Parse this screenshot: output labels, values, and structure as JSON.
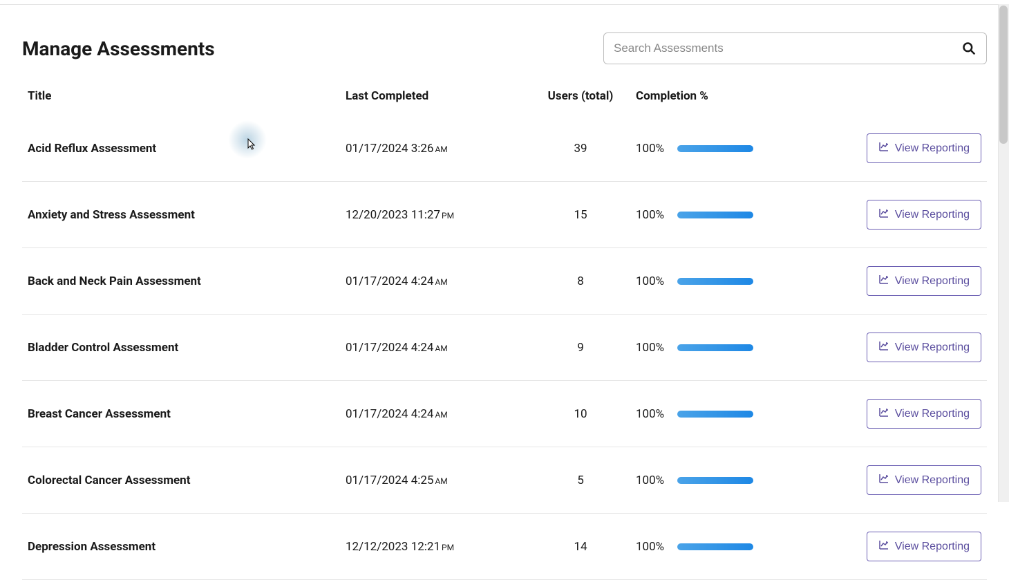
{
  "page": {
    "title": "Manage Assessments"
  },
  "search": {
    "placeholder": "Search Assessments",
    "value": ""
  },
  "columns": {
    "title": "Title",
    "last_completed": "Last Completed",
    "users_total": "Users (total)",
    "completion_pct": "Completion %"
  },
  "action_label": "View Reporting",
  "colors": {
    "progress_start": "#4aa3e8",
    "progress_end": "#1e88e5",
    "button_border": "#6b5fb3",
    "button_text": "#5a4d9e",
    "border": "#e5e5e5",
    "text": "#1a1a1a",
    "placeholder": "#888888"
  },
  "rows": [
    {
      "title": "Acid Reflux Assessment",
      "date": "01/17/2024",
      "time": "3:26",
      "ampm": "AM",
      "users": "39",
      "pct": "100%",
      "progress": 100
    },
    {
      "title": "Anxiety and Stress Assessment",
      "date": "12/20/2023",
      "time": "11:27",
      "ampm": "PM",
      "users": "15",
      "pct": "100%",
      "progress": 100
    },
    {
      "title": "Back and Neck Pain Assessment",
      "date": "01/17/2024",
      "time": "4:24",
      "ampm": "AM",
      "users": "8",
      "pct": "100%",
      "progress": 100
    },
    {
      "title": "Bladder Control Assessment",
      "date": "01/17/2024",
      "time": "4:24",
      "ampm": "AM",
      "users": "9",
      "pct": "100%",
      "progress": 100
    },
    {
      "title": "Breast Cancer Assessment",
      "date": "01/17/2024",
      "time": "4:24",
      "ampm": "AM",
      "users": "10",
      "pct": "100%",
      "progress": 100
    },
    {
      "title": "Colorectal Cancer Assessment",
      "date": "01/17/2024",
      "time": "4:25",
      "ampm": "AM",
      "users": "5",
      "pct": "100%",
      "progress": 100
    },
    {
      "title": "Depression Assessment",
      "date": "12/12/2023",
      "time": "12:21",
      "ampm": "PM",
      "users": "14",
      "pct": "100%",
      "progress": 100
    }
  ]
}
